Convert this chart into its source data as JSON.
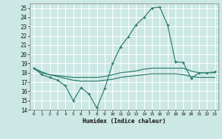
{
  "title": "",
  "xlabel": "Humidex (Indice chaleur)",
  "bg_color": "#cce8e4",
  "grid_color": "#ffffff",
  "line_color": "#2a7a6a",
  "x_values": [
    0,
    1,
    2,
    3,
    4,
    5,
    6,
    7,
    8,
    9,
    10,
    11,
    12,
    13,
    14,
    15,
    16,
    17,
    18,
    19,
    20,
    21,
    22,
    23
  ],
  "line1": [
    18.5,
    17.8,
    17.5,
    17.2,
    16.6,
    15.0,
    16.4,
    15.7,
    14.2,
    16.3,
    19.0,
    20.8,
    21.9,
    23.2,
    24.0,
    25.0,
    25.1,
    23.2,
    19.2,
    19.1,
    17.4,
    18.0,
    18.0,
    18.1
  ],
  "line2": [
    18.5,
    18.1,
    17.8,
    17.7,
    17.6,
    17.5,
    17.5,
    17.5,
    17.5,
    17.6,
    17.8,
    18.0,
    18.1,
    18.2,
    18.4,
    18.5,
    18.5,
    18.5,
    18.5,
    18.5,
    18.2,
    18.0,
    18.0,
    18.0
  ],
  "line3": [
    18.5,
    18.0,
    17.8,
    17.6,
    17.4,
    17.2,
    17.1,
    17.1,
    17.1,
    17.2,
    17.3,
    17.5,
    17.6,
    17.7,
    17.8,
    17.9,
    17.9,
    17.9,
    17.9,
    17.8,
    17.6,
    17.5,
    17.5,
    17.5
  ],
  "ylim": [
    14,
    25.5
  ],
  "yticks": [
    14,
    15,
    16,
    17,
    18,
    19,
    20,
    21,
    22,
    23,
    24,
    25
  ],
  "xlim": [
    -0.5,
    23.5
  ],
  "xticks": [
    0,
    1,
    2,
    3,
    4,
    5,
    6,
    7,
    8,
    9,
    10,
    11,
    12,
    13,
    14,
    15,
    16,
    17,
    18,
    19,
    20,
    21,
    22,
    23
  ]
}
